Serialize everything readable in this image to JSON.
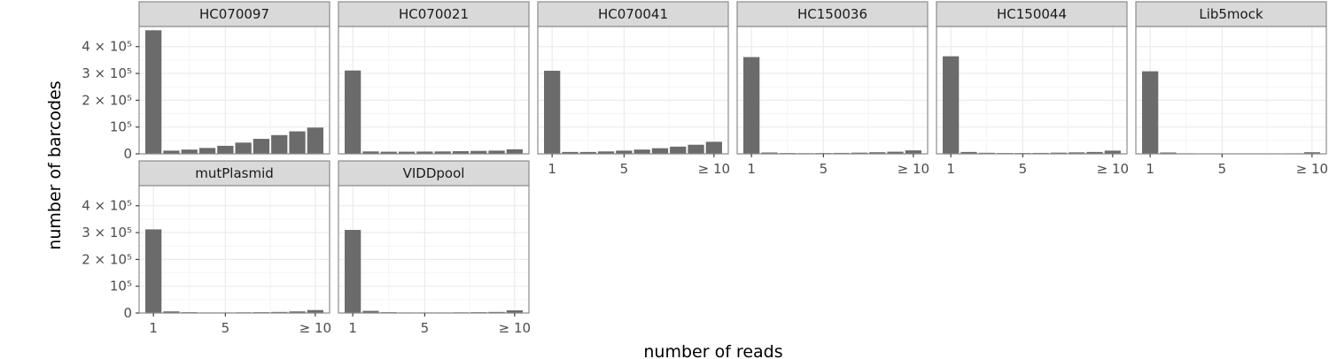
{
  "chart_data": {
    "type": "bar",
    "facet_layout": {
      "cols": 6,
      "rows": 2
    },
    "xlabel": "number of reads",
    "ylabel": "number of barcodes",
    "x": [
      1,
      2,
      3,
      4,
      5,
      6,
      7,
      8,
      9,
      10
    ],
    "x_ticks": [
      {
        "value": 1,
        "label": "1"
      },
      {
        "value": 5,
        "label": "5"
      },
      {
        "value": 10,
        "label": "≥ 10"
      }
    ],
    "ylim": [
      0,
      475000
    ],
    "y_ticks": [
      {
        "value": 0,
        "label": "0"
      },
      {
        "value": 100000,
        "label": "10⁵"
      },
      {
        "value": 200000,
        "label": "2 × 10⁵"
      },
      {
        "value": 300000,
        "label": "3 × 10⁵"
      },
      {
        "value": 400000,
        "label": "4 × 10⁵"
      }
    ],
    "grid": true,
    "bar_color": "#6b6b6b",
    "series": [
      {
        "name": "HC070097",
        "values": [
          461000,
          12000,
          16000,
          22000,
          30000,
          42000,
          56000,
          70000,
          84000,
          98000
        ]
      },
      {
        "name": "HC070021",
        "values": [
          311000,
          9000,
          8000,
          8000,
          8500,
          9000,
          10000,
          11000,
          12000,
          17000
        ]
      },
      {
        "name": "HC070041",
        "values": [
          310000,
          7000,
          7000,
          9000,
          12000,
          16000,
          21000,
          27000,
          34000,
          45000
        ]
      },
      {
        "name": "HC150036",
        "values": [
          361000,
          5000,
          3000,
          2500,
          3000,
          3500,
          4500,
          6000,
          8000,
          13000
        ]
      },
      {
        "name": "HC150044",
        "values": [
          364000,
          7000,
          4000,
          3000,
          3000,
          3500,
          4500,
          5500,
          7000,
          12000
        ]
      },
      {
        "name": "Lib5mock",
        "values": [
          308000,
          5000,
          2000,
          1000,
          1000,
          1000,
          1000,
          1500,
          2000,
          6000
        ]
      },
      {
        "name": "mutPlasmid",
        "values": [
          312000,
          6000,
          3000,
          2000,
          2000,
          2500,
          3000,
          4000,
          6000,
          11000
        ]
      },
      {
        "name": "VIDDpool",
        "values": [
          310000,
          8000,
          3000,
          2000,
          2000,
          2000,
          2500,
          3000,
          4000,
          10000
        ]
      }
    ]
  }
}
